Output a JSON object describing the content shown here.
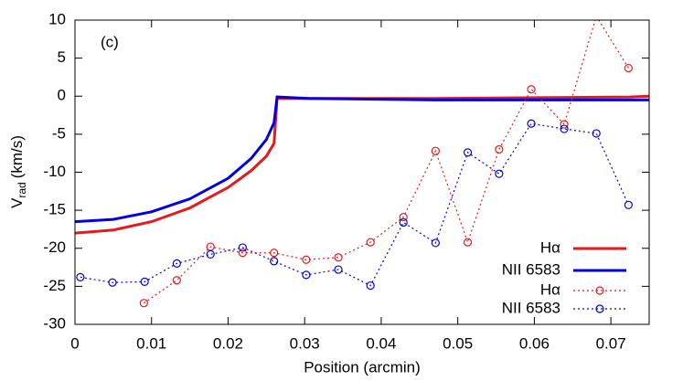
{
  "chart_data": {
    "type": "line",
    "annotation": "(c)",
    "x_label": "Position (arcmin)",
    "y_label": {
      "main": "V",
      "sub": "rad",
      "unit": "(km/s)"
    },
    "xlim": [
      0,
      0.075
    ],
    "xticks": [
      0,
      0.01,
      0.02,
      0.03,
      0.04,
      0.05,
      0.06,
      0.07
    ],
    "ylim": [
      -30,
      10
    ],
    "yticks": [
      -30,
      -25,
      -20,
      -15,
      -10,
      -5,
      0,
      5,
      10
    ],
    "legend": "lower right",
    "series": [
      {
        "name": "Hα",
        "color": "#e41a1c",
        "style": "solid",
        "marker": "none",
        "x": [
          0,
          0.005,
          0.01,
          0.015,
          0.02,
          0.023,
          0.025,
          0.026,
          0.0264,
          0.047,
          0.0725,
          0.075
        ],
        "values": [
          -18,
          -17.6,
          -16.5,
          -14.7,
          -12,
          -9.8,
          -7.9,
          -6.2,
          -0.3,
          -0.3,
          -0.1,
          0
        ]
      },
      {
        "name": "NII 6583",
        "color": "#0000e0",
        "style": "solid",
        "marker": "none",
        "x": [
          0,
          0.005,
          0.01,
          0.015,
          0.02,
          0.023,
          0.025,
          0.026,
          0.0264,
          0.0305,
          0.047,
          0.075
        ],
        "values": [
          -16.5,
          -16.2,
          -15.2,
          -13.5,
          -10.8,
          -8.2,
          -5.7,
          -3.5,
          -0.1,
          -0.3,
          -0.5,
          -0.5
        ]
      },
      {
        "name": "Hα",
        "color": "#e41a1c",
        "style": "dotted",
        "marker": "circle",
        "x": [
          0.009,
          0.0133,
          0.0177,
          0.0219,
          0.026,
          0.0302,
          0.0344,
          0.0386,
          0.0429,
          0.0471,
          0.0513,
          0.0554,
          0.0596,
          0.0639,
          0.0681,
          0.0723
        ],
        "values": [
          -27.2,
          -24.2,
          -19.8,
          -20.6,
          -20.6,
          -21.5,
          -21.2,
          -19.2,
          -15.9,
          -7.2,
          -19.2,
          -7,
          0.9,
          -3.7,
          10.5,
          3.7
        ]
      },
      {
        "name": "NII 6583",
        "color": "#0000e0",
        "style": "dotted",
        "marker": "circle",
        "x": [
          0.0007,
          0.0049,
          0.0091,
          0.0133,
          0.0177,
          0.0219,
          0.026,
          0.0302,
          0.0344,
          0.0386,
          0.0429,
          0.0471,
          0.0513,
          0.0554,
          0.0596,
          0.0639,
          0.0681,
          0.0723
        ],
        "values": [
          -23.8,
          -24.5,
          -24.4,
          -22,
          -20.8,
          -19.9,
          -21.7,
          -23.5,
          -22.8,
          -24.9,
          -16.6,
          -19.3,
          -7.4,
          -10.2,
          -3.6,
          -4.3,
          -4.9,
          -14.3
        ]
      }
    ]
  }
}
